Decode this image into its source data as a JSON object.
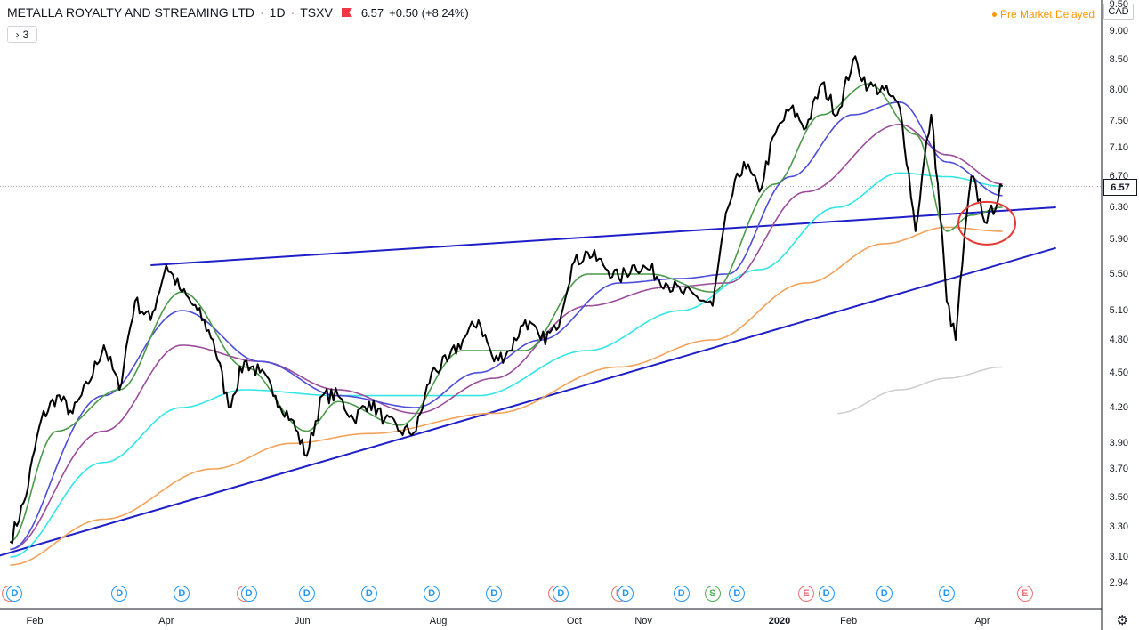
{
  "header": {
    "symbol_name": "METALLA ROYALTY AND STREAMING LTD",
    "interval": "1D",
    "exchange": "TSXV",
    "sep": "·",
    "price": "6.57",
    "change": "+0.50 (+8.24%)",
    "indicators_toggle": "3",
    "toggle_icon": "chevron-right-icon"
  },
  "status": {
    "premarket": "Pre Market Delayed",
    "currency": "CAD"
  },
  "current_price": "6.57",
  "settings_icon": "gear-icon",
  "colors": {
    "price": "#000000",
    "ema_fast": "#4a9a4a",
    "ema_2": "#4d4dd9",
    "ema_3": "#9c4d9c",
    "ema_4": "#33e6e6",
    "ema_5": "#f4a259",
    "ema_6": "#cfcfcf",
    "trendline": "#1f1fc8",
    "circle": "#e53935"
  },
  "chart_data": {
    "type": "line",
    "ylim": [
      2.94,
      9.4
    ],
    "y_ticks": [
      "2.94",
      "3.10",
      "3.30",
      "3.50",
      "3.70",
      "3.90",
      "4.20",
      "4.50",
      "4.80",
      "5.10",
      "5.50",
      "5.90",
      "6.30",
      "6.70",
      "7.10",
      "7.50",
      "8.00",
      "8.50",
      "9.00",
      "9.50"
    ],
    "x_ticks": [
      "Feb",
      "Apr",
      "Jun",
      "Aug",
      "Oct",
      "Nov",
      "2020",
      "Feb",
      "Apr"
    ],
    "series": [],
    "price_keys": [
      [
        "2019-01-21",
        3.2
      ],
      [
        "2019-01-28",
        3.5
      ],
      [
        "2019-02-04",
        4.1
      ],
      [
        "2019-02-11",
        4.3
      ],
      [
        "2019-02-18",
        4.15
      ],
      [
        "2019-02-25",
        4.4
      ],
      [
        "2019-03-04",
        4.75
      ],
      [
        "2019-03-11",
        4.35
      ],
      [
        "2019-03-18",
        5.2
      ],
      [
        "2019-03-25",
        5.0
      ],
      [
        "2019-04-01",
        5.6
      ],
      [
        "2019-04-08",
        5.3
      ],
      [
        "2019-04-15",
        5.1
      ],
      [
        "2019-04-22",
        4.8
      ],
      [
        "2019-04-29",
        4.2
      ],
      [
        "2019-05-06",
        4.6
      ],
      [
        "2019-05-13",
        4.5
      ],
      [
        "2019-05-20",
        4.3
      ],
      [
        "2019-05-27",
        4.1
      ],
      [
        "2019-06-03",
        3.8
      ],
      [
        "2019-06-10",
        4.3
      ],
      [
        "2019-06-17",
        4.3
      ],
      [
        "2019-06-24",
        4.1
      ],
      [
        "2019-07-01",
        4.25
      ],
      [
        "2019-07-08",
        4.1
      ],
      [
        "2019-07-15",
        4.0
      ],
      [
        "2019-07-22",
        4.0
      ],
      [
        "2019-07-29",
        4.5
      ],
      [
        "2019-08-05",
        4.6
      ],
      [
        "2019-08-12",
        4.8
      ],
      [
        "2019-08-19",
        5.0
      ],
      [
        "2019-08-26",
        4.6
      ],
      [
        "2019-09-02",
        4.7
      ],
      [
        "2019-09-09",
        5.0
      ],
      [
        "2019-09-16",
        4.8
      ],
      [
        "2019-09-23",
        4.9
      ],
      [
        "2019-09-30",
        5.6
      ],
      [
        "2019-10-07",
        5.75
      ],
      [
        "2019-10-14",
        5.6
      ],
      [
        "2019-10-21",
        5.45
      ],
      [
        "2019-10-28",
        5.6
      ],
      [
        "2019-11-04",
        5.55
      ],
      [
        "2019-11-11",
        5.4
      ],
      [
        "2019-11-18",
        5.3
      ],
      [
        "2019-11-25",
        5.25
      ],
      [
        "2019-12-02",
        5.15
      ],
      [
        "2019-12-09",
        6.3
      ],
      [
        "2019-12-16",
        6.9
      ],
      [
        "2019-12-23",
        6.5
      ],
      [
        "2019-12-30",
        7.3
      ],
      [
        "2020-01-06",
        7.7
      ],
      [
        "2020-01-13",
        7.4
      ],
      [
        "2020-01-20",
        8.1
      ],
      [
        "2020-01-27",
        7.6
      ],
      [
        "2020-02-03",
        8.5
      ],
      [
        "2020-02-10",
        8.05
      ],
      [
        "2020-02-17",
        8.0
      ],
      [
        "2020-02-24",
        7.7
      ],
      [
        "2020-03-02",
        6.0
      ],
      [
        "2020-03-09",
        7.6
      ],
      [
        "2020-03-16",
        5.2
      ],
      [
        "2020-03-20",
        4.8
      ],
      [
        "2020-03-27",
        6.7
      ],
      [
        "2020-04-03",
        6.1
      ],
      [
        "2020-04-10",
        6.57
      ]
    ],
    "ema_keys": {
      "ema_fast": [
        [
          "2019-01-21",
          3.2
        ],
        [
          "2019-02-11",
          4.0
        ],
        [
          "2019-03-11",
          4.35
        ],
        [
          "2019-04-08",
          5.3
        ],
        [
          "2019-05-06",
          4.55
        ],
        [
          "2019-06-03",
          4.0
        ],
        [
          "2019-06-17",
          4.25
        ],
        [
          "2019-07-15",
          4.05
        ],
        [
          "2019-08-12",
          4.7
        ],
        [
          "2019-09-09",
          4.7
        ],
        [
          "2019-10-07",
          5.5
        ],
        [
          "2019-11-04",
          5.5
        ],
        [
          "2019-12-02",
          5.3
        ],
        [
          "2019-12-30",
          6.6
        ],
        [
          "2020-01-20",
          7.6
        ],
        [
          "2020-02-10",
          8.1
        ],
        [
          "2020-03-02",
          7.3
        ],
        [
          "2020-03-16",
          6.0
        ],
        [
          "2020-03-27",
          6.2
        ],
        [
          "2020-04-10",
          6.3
        ]
      ],
      "ema_2": [
        [
          "2019-01-21",
          3.15
        ],
        [
          "2019-03-04",
          4.3
        ],
        [
          "2019-04-08",
          5.1
        ],
        [
          "2019-05-13",
          4.6
        ],
        [
          "2019-06-17",
          4.3
        ],
        [
          "2019-07-22",
          4.2
        ],
        [
          "2019-08-19",
          4.5
        ],
        [
          "2019-09-16",
          4.8
        ],
        [
          "2019-10-21",
          5.4
        ],
        [
          "2019-11-18",
          5.45
        ],
        [
          "2019-12-09",
          5.5
        ],
        [
          "2020-01-06",
          6.7
        ],
        [
          "2020-02-03",
          7.6
        ],
        [
          "2020-02-24",
          7.8
        ],
        [
          "2020-03-16",
          6.9
        ],
        [
          "2020-04-10",
          6.45
        ]
      ],
      "ema_3": [
        [
          "2019-01-21",
          3.15
        ],
        [
          "2019-03-04",
          4.0
        ],
        [
          "2019-04-08",
          4.75
        ],
        [
          "2019-05-13",
          4.6
        ],
        [
          "2019-06-17",
          4.35
        ],
        [
          "2019-07-22",
          4.15
        ],
        [
          "2019-08-26",
          4.45
        ],
        [
          "2019-10-07",
          5.15
        ],
        [
          "2019-11-11",
          5.35
        ],
        [
          "2019-12-09",
          5.4
        ],
        [
          "2020-01-13",
          6.5
        ],
        [
          "2020-02-24",
          7.45
        ],
        [
          "2020-03-16",
          7.0
        ],
        [
          "2020-04-10",
          6.6
        ]
      ],
      "ema_4": [
        [
          "2019-01-21",
          3.1
        ],
        [
          "2019-03-04",
          3.75
        ],
        [
          "2019-04-08",
          4.2
        ],
        [
          "2019-05-06",
          4.35
        ],
        [
          "2019-06-17",
          4.3
        ],
        [
          "2019-08-19",
          4.3
        ],
        [
          "2019-10-07",
          4.7
        ],
        [
          "2019-11-18",
          5.1
        ],
        [
          "2019-12-23",
          5.55
        ],
        [
          "2020-01-27",
          6.3
        ],
        [
          "2020-02-24",
          6.75
        ],
        [
          "2020-03-16",
          6.7
        ],
        [
          "2020-04-10",
          6.57
        ]
      ],
      "ema_5": [
        [
          "2019-01-21",
          3.05
        ],
        [
          "2019-03-04",
          3.35
        ],
        [
          "2019-04-22",
          3.7
        ],
        [
          "2019-05-27",
          3.9
        ],
        [
          "2019-07-01",
          3.98
        ],
        [
          "2019-08-26",
          4.15
        ],
        [
          "2019-10-21",
          4.55
        ],
        [
          "2019-12-02",
          4.8
        ],
        [
          "2020-01-13",
          5.4
        ],
        [
          "2020-02-17",
          5.85
        ],
        [
          "2020-03-16",
          6.05
        ],
        [
          "2020-04-10",
          6.0
        ]
      ],
      "ema_6": [
        [
          "2020-01-27",
          4.15
        ],
        [
          "2020-02-24",
          4.35
        ],
        [
          "2020-03-16",
          4.45
        ],
        [
          "2020-04-10",
          4.55
        ]
      ]
    },
    "trendlines": [
      {
        "from": [
          "2019-03-25",
          5.6
        ],
        "to": [
          "2020-05-04",
          6.3
        ]
      },
      {
        "from": [
          "2019-01-14",
          3.1
        ],
        "to": [
          "2020-05-04",
          5.8
        ]
      }
    ],
    "highlight_circle": {
      "center": [
        "2020-04-03",
        6.1
      ]
    },
    "events": [
      {
        "date": "2019-01-21",
        "type": "E"
      },
      {
        "date": "2019-01-23",
        "type": "D"
      },
      {
        "date": "2019-03-11",
        "type": "D"
      },
      {
        "date": "2019-04-08",
        "type": "D"
      },
      {
        "date": "2019-05-06",
        "type": "E"
      },
      {
        "date": "2019-05-08",
        "type": "D"
      },
      {
        "date": "2019-06-03",
        "type": "D"
      },
      {
        "date": "2019-07-01",
        "type": "D"
      },
      {
        "date": "2019-07-29",
        "type": "D"
      },
      {
        "date": "2019-08-26",
        "type": "D"
      },
      {
        "date": "2019-09-23",
        "type": "E"
      },
      {
        "date": "2019-09-25",
        "type": "D"
      },
      {
        "date": "2019-10-21",
        "type": "E"
      },
      {
        "date": "2019-10-24",
        "type": "D"
      },
      {
        "date": "2019-11-18",
        "type": "D"
      },
      {
        "date": "2019-12-02",
        "type": "S"
      },
      {
        "date": "2019-12-13",
        "type": "D"
      },
      {
        "date": "2020-01-13",
        "type": "E"
      },
      {
        "date": "2020-01-22",
        "type": "D"
      },
      {
        "date": "2020-02-17",
        "type": "D"
      },
      {
        "date": "2020-03-16",
        "type": "D"
      },
      {
        "date": "2020-04-20",
        "type": "E"
      }
    ]
  }
}
